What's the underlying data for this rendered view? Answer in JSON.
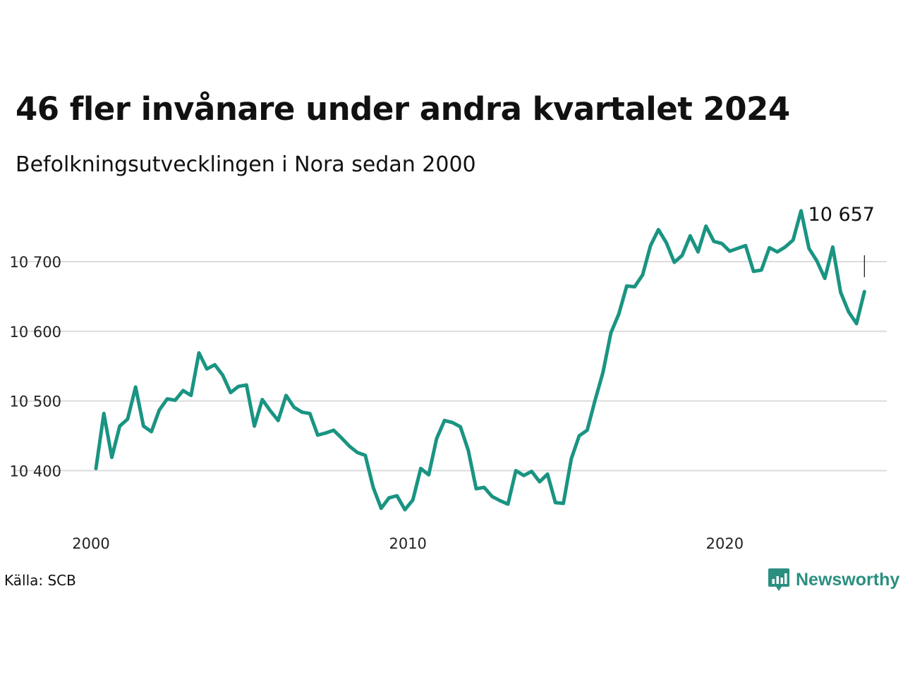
{
  "title": "46 fler invånare under andra kvartalet 2024",
  "subtitle": "Befolkningsutvecklingen i Nora sedan 2000",
  "source": "Källa: SCB",
  "brand": {
    "name": "Newsworthy",
    "icon": "bar-chart-icon",
    "color": "#2b8f80"
  },
  "chart_data": {
    "type": "line",
    "title": "46 fler invånare under andra kvartalet 2024",
    "subtitle": "Befolkningsutvecklingen i Nora sedan 2000",
    "xlabel": "",
    "ylabel": "",
    "x_ticks": [
      "2000",
      "2010",
      "2020"
    ],
    "y_ticks": [
      10400,
      10500,
      10600,
      10700
    ],
    "y_tick_labels": [
      "10 400",
      "10 500",
      "10 600",
      "10 700"
    ],
    "ylim": [
      10320,
      10780
    ],
    "xlim": [
      2000.0,
      2025.0
    ],
    "grid": true,
    "line_color": "#1a9482",
    "last_label": "10 657",
    "series": [
      {
        "x": [
          2000.0,
          2000.25,
          2000.5,
          2000.75,
          2001.0,
          2001.25,
          2001.5,
          2001.75,
          2002.0,
          2002.25,
          2002.5,
          2002.75,
          2003.0,
          2003.25,
          2003.5,
          2003.75,
          2004.0,
          2004.25,
          2004.5,
          2004.75,
          2005.0,
          2005.25,
          2005.5,
          2005.75,
          2006.0,
          2006.25,
          2006.5,
          2006.75,
          2007.0,
          2007.25,
          2007.5,
          2007.75,
          2008.0,
          2008.25,
          2008.5,
          2008.75,
          2009.0,
          2009.25,
          2009.5,
          2009.75,
          2010.0,
          2010.25,
          2010.5,
          2010.75,
          2011.0,
          2011.25,
          2011.5,
          2011.75,
          2012.0,
          2012.25,
          2012.5,
          2012.75,
          2013.0,
          2013.25,
          2013.5,
          2013.75,
          2014.0,
          2014.25,
          2014.5,
          2014.75,
          2015.0,
          2015.25,
          2015.5,
          2015.75,
          2016.0,
          2016.25,
          2016.5,
          2016.75,
          2017.0,
          2017.25,
          2017.5,
          2017.75,
          2018.0,
          2018.25,
          2018.5,
          2018.75,
          2019.0,
          2019.25,
          2019.5,
          2019.75,
          2020.0,
          2020.25,
          2020.5,
          2020.75,
          2021.0,
          2021.25,
          2021.5,
          2021.75,
          2022.0,
          2022.25,
          2022.5,
          2022.75,
          2023.0,
          2023.25,
          2023.5,
          2023.75,
          2024.0,
          2024.25
        ],
        "y": [
          10403,
          10482,
          10419,
          10464,
          10474,
          10520,
          10464,
          10456,
          10487,
          10503,
          10501,
          10515,
          10508,
          10569,
          10546,
          10552,
          10537,
          10512,
          10521,
          10523,
          10464,
          10502,
          10486,
          10472,
          10508,
          10491,
          10484,
          10482,
          10451,
          10454,
          10458,
          10447,
          10435,
          10426,
          10422,
          10376,
          10346,
          10361,
          10364,
          10344,
          10358,
          10403,
          10394,
          10446,
          10472,
          10469,
          10463,
          10429,
          10374,
          10376,
          10363,
          10357,
          10352,
          10400,
          10393,
          10399,
          10384,
          10395,
          10354,
          10353,
          10417,
          10450,
          10458,
          10501,
          10541,
          10598,
          10625,
          10665,
          10664,
          10681,
          10723,
          10746,
          10727,
          10699,
          10709,
          10737,
          10714,
          10751,
          10729,
          10726,
          10715,
          10719,
          10723,
          10686,
          10688,
          10720,
          10714,
          10721,
          10731,
          10773,
          10719,
          10701,
          10676,
          10721,
          10656,
          10628,
          10611,
          10657
        ]
      }
    ]
  }
}
